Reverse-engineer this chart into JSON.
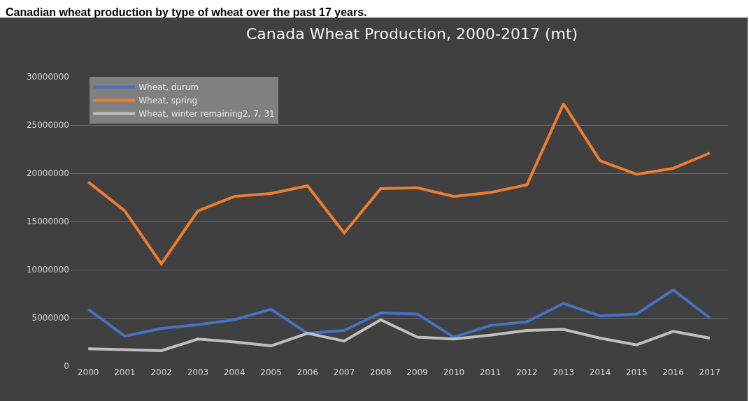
{
  "chart_data": {
    "type": "line",
    "title": "Canada Wheat Production, 2000-2017 (mt)",
    "annotations": [
      "Canadian wheat production by type of wheat over the past 17 years."
    ],
    "categories": [
      "2000",
      "2001",
      "2002",
      "2003",
      "2004",
      "2005",
      "2006",
      "2007",
      "2008",
      "2009",
      "2010",
      "2011",
      "2012",
      "2013",
      "2014",
      "2015",
      "2016",
      "2017"
    ],
    "series": [
      {
        "name": "Wheat, durum",
        "color": "#4472c4",
        "values": [
          5900000,
          3100000,
          3900000,
          4300000,
          4800000,
          5900000,
          3400000,
          3700000,
          5500000,
          5400000,
          3000000,
          4200000,
          4600000,
          6500000,
          5200000,
          5400000,
          7900000,
          5000000
        ]
      },
      {
        "name": "Wheat, spring",
        "color": "#ed7d31",
        "values": [
          19100000,
          16100000,
          10600000,
          16100000,
          17600000,
          17900000,
          18700000,
          13800000,
          18400000,
          18500000,
          17600000,
          18000000,
          18800000,
          27200000,
          21300000,
          19900000,
          20500000,
          22100000
        ]
      },
      {
        "name": "Wheat, winter remaining2, 7, 31",
        "color": "#bfbfbf",
        "values": [
          1800000,
          1700000,
          1600000,
          2800000,
          2500000,
          2100000,
          3400000,
          2600000,
          4800000,
          3000000,
          2800000,
          3200000,
          3700000,
          3800000,
          2900000,
          2200000,
          3600000,
          2900000
        ]
      }
    ],
    "ylim": [
      0,
      30000000
    ],
    "yticks": [
      0,
      5000000,
      10000000,
      15000000,
      20000000,
      25000000,
      30000000
    ],
    "grid": "y",
    "legend": "top left",
    "marker": "none",
    "line_style": "solid"
  }
}
